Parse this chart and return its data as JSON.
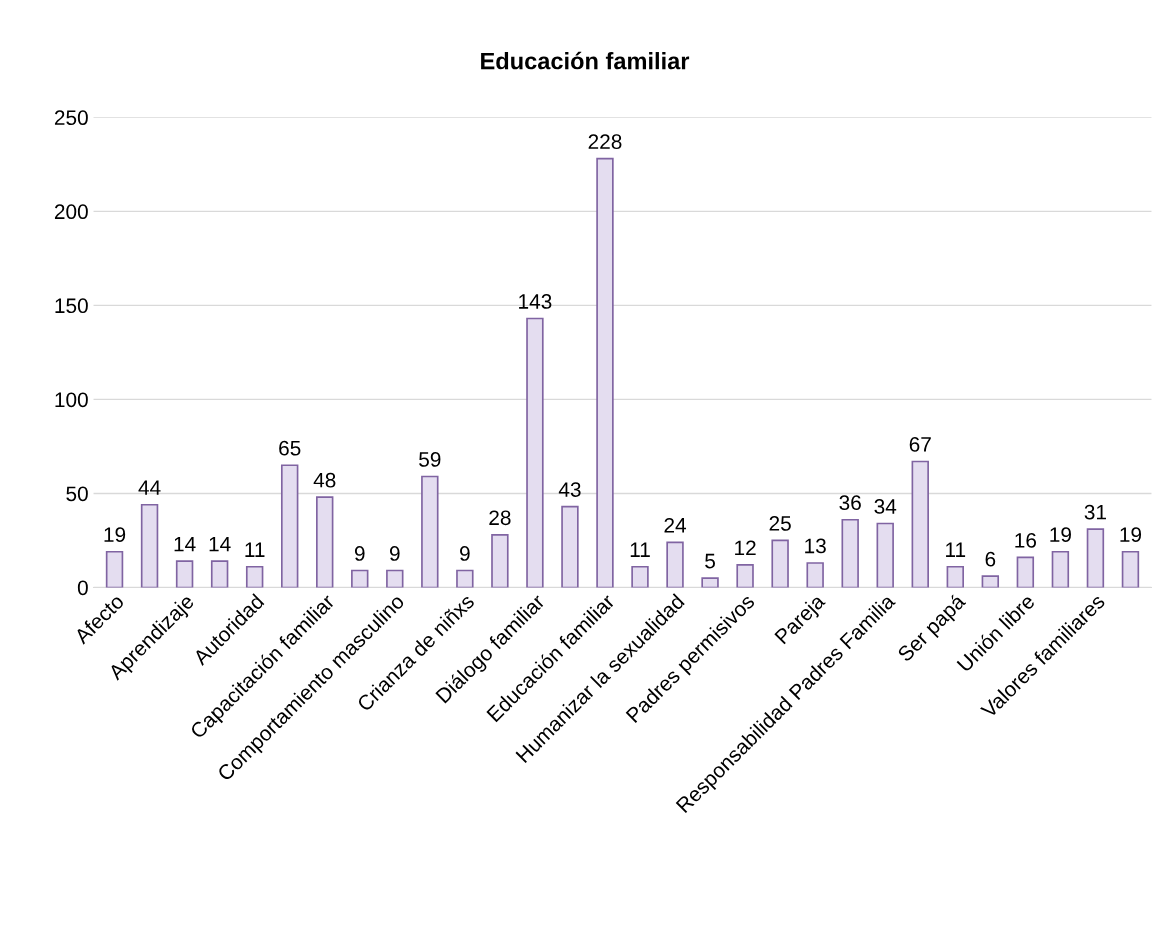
{
  "chart_data": {
    "type": "bar",
    "title": "Educación familiar",
    "categories": [
      "Afecto",
      null,
      "Aprendizaje",
      null,
      "Autoridad",
      null,
      "Capacitación familiar",
      null,
      "Comportamiento masculino",
      null,
      "Crianza de niñxs",
      null,
      "Diálogo familiar",
      null,
      "Educación familiar",
      null,
      "Humanizar la sexualidad",
      null,
      "Padres permisivos",
      null,
      "Pareja",
      null,
      "Responsabilidad Padres Familia",
      null,
      "Ser papá",
      null,
      "Unión libre",
      null,
      "Valores familiares",
      null
    ],
    "values": [
      19,
      44,
      14,
      14,
      11,
      65,
      48,
      9,
      9,
      59,
      9,
      28,
      143,
      43,
      228,
      11,
      24,
      5,
      12,
      25,
      13,
      36,
      34,
      67,
      11,
      6,
      16,
      19,
      31,
      19
    ],
    "color": "#e4ddf0",
    "ylim": [
      0,
      250
    ],
    "yticks": [
      0,
      50,
      100,
      150,
      200,
      250
    ],
    "grid": "y",
    "data_labels": true,
    "legend": false
  }
}
